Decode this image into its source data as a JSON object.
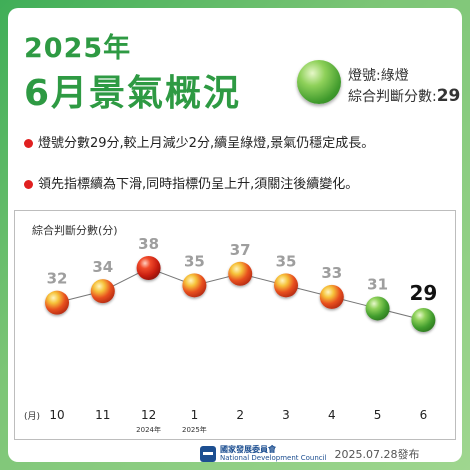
{
  "header": {
    "year": "2025年",
    "title": "6月景氣概況",
    "signal_label": "燈號:綠燈",
    "score_label": "綜合判斷分數:",
    "score_value": "29"
  },
  "bullets": [
    "燈號分數29分,較上月減少2分,續呈綠燈,景氣仍穩定成長。",
    "領先指標續為下滑,同時指標仍呈上升,須關注後續變化。"
  ],
  "chart_data": {
    "type": "line",
    "title": "",
    "ylabel": "綜合判斷分數(分)",
    "xlabel": "(月)",
    "categories": [
      "10",
      "11",
      "12",
      "1",
      "2",
      "3",
      "4",
      "5",
      "6"
    ],
    "category_sublabels": [
      "",
      "",
      "2024年",
      "2025年",
      "",
      "",
      "",
      "",
      ""
    ],
    "values": [
      32,
      34,
      38,
      35,
      37,
      35,
      33,
      31,
      29
    ],
    "signals": [
      "yellow-red",
      "yellow-red",
      "red",
      "yellow-red",
      "yellow-red",
      "yellow-red",
      "yellow-red",
      "green",
      "green"
    ],
    "ylim": [
      24,
      42
    ],
    "grid": false,
    "colors": {
      "line": "#777777",
      "label": "#9e9e9e",
      "latest_label": "#111111"
    }
  },
  "footer": {
    "org_zh": "國家發展委員會",
    "org_en": "National Development Council",
    "date": "2025.07.28發布"
  },
  "colors": {
    "accent": "#2e9a43",
    "bullet": "#e02020",
    "green": "#5fb93f",
    "red": "#e02a1b",
    "yellow": "#f3b21d"
  }
}
